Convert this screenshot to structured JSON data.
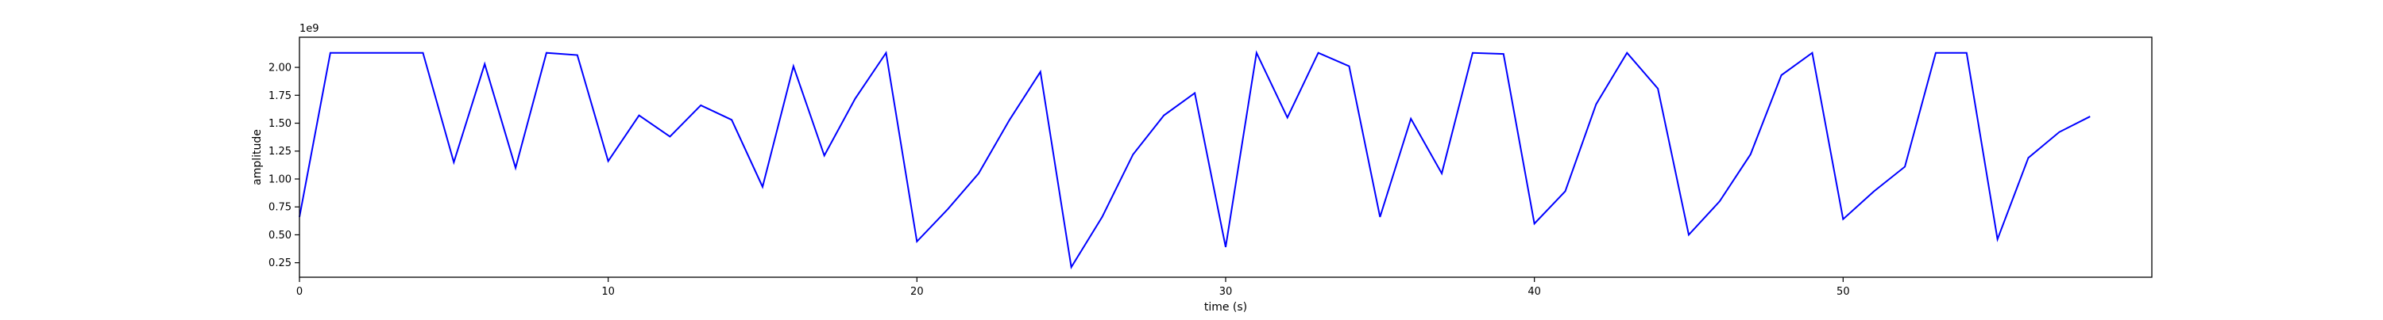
{
  "chart_data": {
    "type": "line",
    "title": "",
    "xlabel": "time (s)",
    "ylabel": "amplitude",
    "y_offset_text": "1e9",
    "xlim": [
      0,
      60
    ],
    "ylim": [
      0.12,
      2.27
    ],
    "x_ticks": [
      0,
      10,
      20,
      30,
      40,
      50
    ],
    "x_tick_labels": [
      "0",
      "10",
      "20",
      "30",
      "40",
      "50"
    ],
    "y_ticks": [
      0.25,
      0.5,
      0.75,
      1.0,
      1.25,
      1.5,
      1.75,
      2.0
    ],
    "y_tick_labels": [
      "0.25",
      "0.50",
      "0.75",
      "1.00",
      "1.25",
      "1.50",
      "1.75",
      "2.00"
    ],
    "grid": false,
    "series": [
      {
        "color": "#0000ff",
        "x": [
          0,
          1,
          2,
          3,
          4,
          5,
          6,
          7,
          8,
          9,
          10,
          11,
          12,
          13,
          14,
          15,
          16,
          17,
          18,
          19,
          20,
          21,
          22,
          23,
          24,
          25,
          26,
          27,
          28,
          29,
          30,
          31,
          32,
          33,
          34,
          35,
          36,
          37,
          38,
          39,
          40,
          41,
          42,
          43,
          44,
          45,
          46,
          47,
          48,
          49,
          50,
          51,
          52,
          53,
          54,
          55,
          56,
          57,
          58
        ],
        "y": [
          0.66,
          2.13,
          2.13,
          2.13,
          2.13,
          1.15,
          2.03,
          1.1,
          2.13,
          2.11,
          1.16,
          1.57,
          1.38,
          1.66,
          1.53,
          0.93,
          2.01,
          1.21,
          1.72,
          2.13,
          0.44,
          0.73,
          1.05,
          1.53,
          1.96,
          0.21,
          0.66,
          1.22,
          1.57,
          1.77,
          0.39,
          2.13,
          1.55,
          2.13,
          2.01,
          0.66,
          1.54,
          1.05,
          2.13,
          2.12,
          0.6,
          0.89,
          1.67,
          2.13,
          1.81,
          0.5,
          0.8,
          1.22,
          1.93,
          2.13,
          0.64,
          0.89,
          1.11,
          2.13,
          2.13,
          0.46,
          1.19,
          1.42,
          1.56
        ]
      }
    ]
  }
}
